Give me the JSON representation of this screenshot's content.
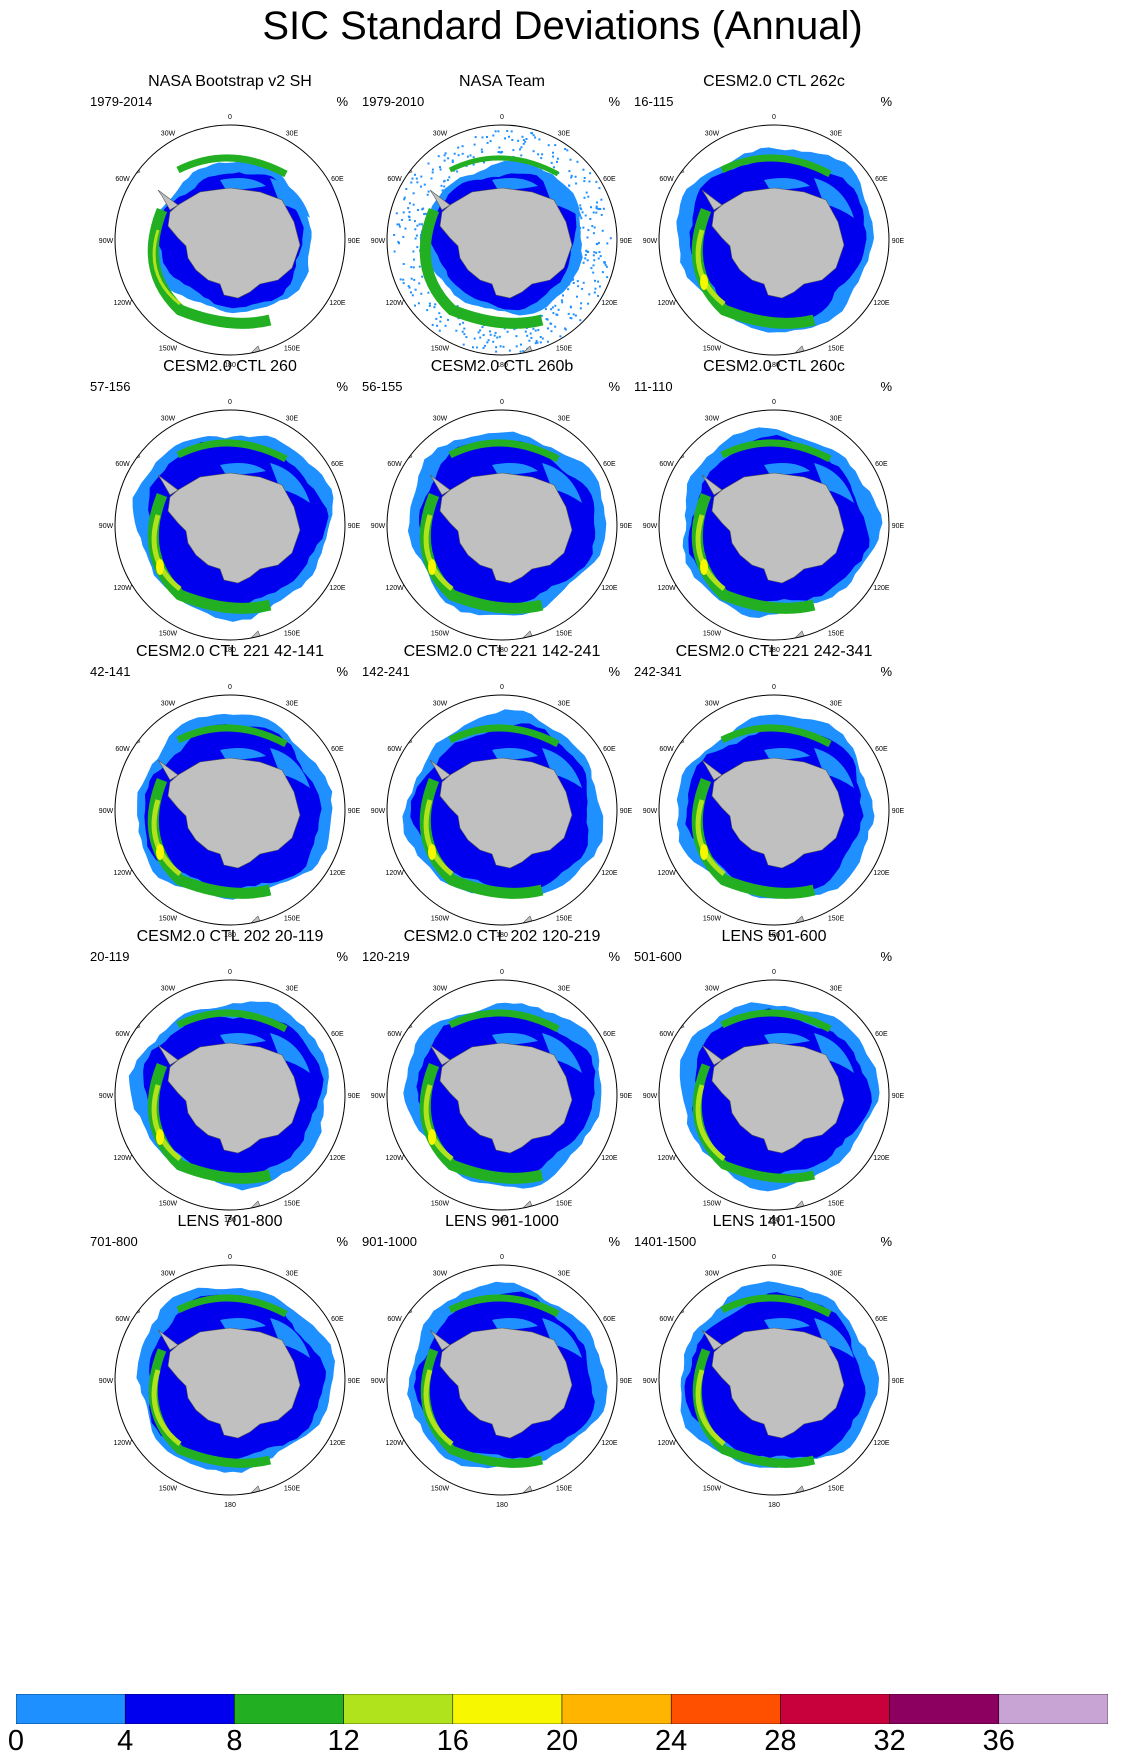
{
  "title": "SIC Standard Deviations (Annual)",
  "unit_label": "%",
  "meridian_labels": [
    "0",
    "30E",
    "60E",
    "90E",
    "120E",
    "150E",
    "180",
    "150W",
    "120W",
    "90W",
    "60W",
    "30W"
  ],
  "colors": {
    "land": "#c0c0c0",
    "levels": [
      "#1e90ff",
      "#0000ee",
      "#22b022",
      "#b0e31c",
      "#f7f700",
      "#ffb400",
      "#ff5000",
      "#c8003c",
      "#8c0060",
      "#c8a4d4"
    ]
  },
  "colorbar": {
    "ticks": [
      "0",
      "4",
      "8",
      "12",
      "16",
      "20",
      "24",
      "28",
      "32",
      "36"
    ]
  },
  "panels": [
    {
      "title": "NASA Bootstrap v2 SH",
      "years": "1979-2014",
      "kind": "obs"
    },
    {
      "title": "NASA Team",
      "years": "1979-2010",
      "kind": "obs-team"
    },
    {
      "title": "CESM2.0 CTL 262c",
      "years": "16-115",
      "kind": "model"
    },
    {
      "title": "CESM2.0 CTL 260",
      "years": "57-156",
      "kind": "model"
    },
    {
      "title": "CESM2.0 CTL 260b",
      "years": "56-155",
      "kind": "model"
    },
    {
      "title": "CESM2.0 CTL 260c",
      "years": "11-110",
      "kind": "model"
    },
    {
      "title": "CESM2.0 CTL 221 42-141",
      "years": "42-141",
      "kind": "model"
    },
    {
      "title": "CESM2.0 CTL 221 142-241",
      "years": "142-241",
      "kind": "model"
    },
    {
      "title": "CESM2.0 CTL 221 242-341",
      "years": "242-341",
      "kind": "model"
    },
    {
      "title": "CESM2.0 CTL 202 20-119",
      "years": "20-119",
      "kind": "model"
    },
    {
      "title": "CESM2.0 CTL 202 120-219",
      "years": "120-219",
      "kind": "model"
    },
    {
      "title": "LENS 501-600",
      "years": "501-600",
      "kind": "lens"
    },
    {
      "title": "LENS 701-800",
      "years": "701-800",
      "kind": "lens"
    },
    {
      "title": "LENS 901-1000",
      "years": "901-1000",
      "kind": "lens"
    },
    {
      "title": "LENS 1401-1500",
      "years": "1401-1500",
      "kind": "lens"
    }
  ]
}
